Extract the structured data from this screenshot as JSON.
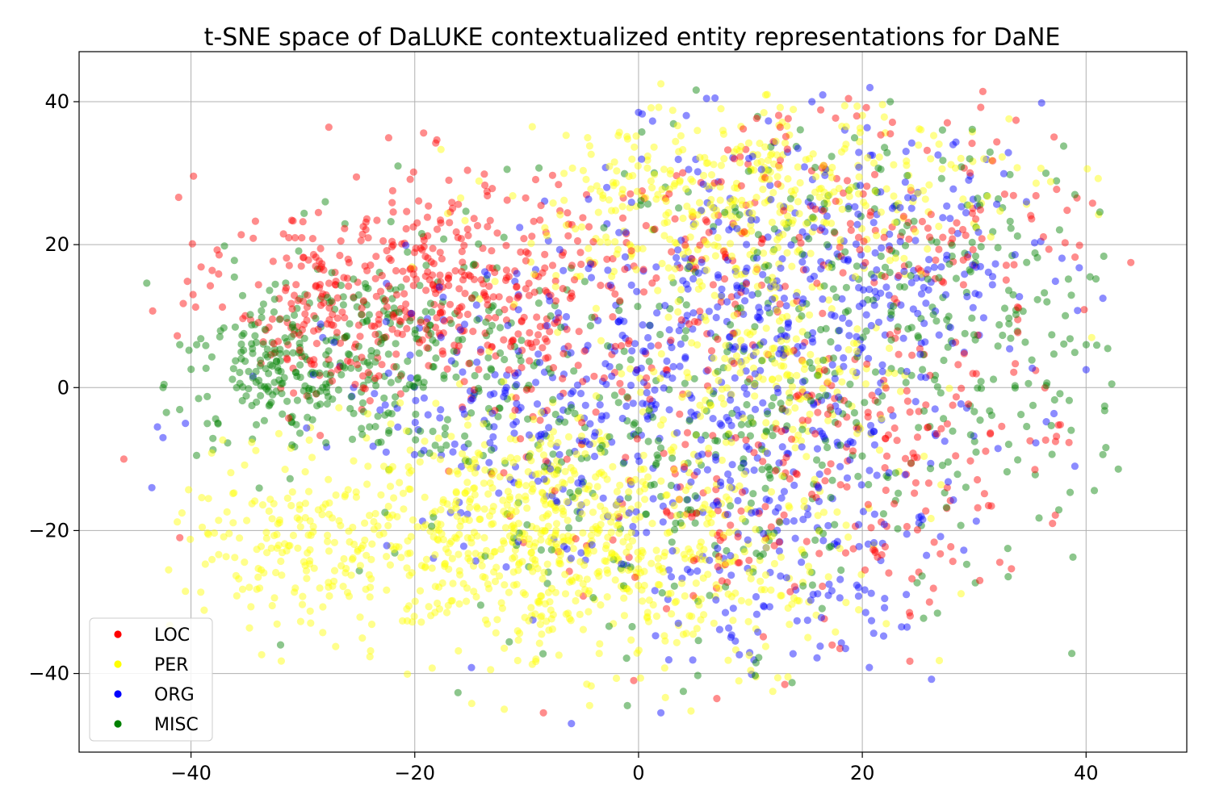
{
  "chart_data": {
    "type": "scatter",
    "title": "t-SNE space of DaLUKE contextualized entity representations for DaNE",
    "xlabel": "",
    "ylabel": "",
    "xlim": [
      -50,
      49
    ],
    "ylim": [
      -51,
      47
    ],
    "xticks": [
      -40,
      -20,
      0,
      20,
      40
    ],
    "yticks": [
      -40,
      -20,
      0,
      20,
      40
    ],
    "xtick_labels": [
      "−40",
      "−20",
      "0",
      "20",
      "40"
    ],
    "ytick_labels": [
      "−40",
      "−20",
      "0",
      "20",
      "40"
    ],
    "grid": true,
    "legend_position": "lower-left",
    "series": [
      {
        "name": "LOC",
        "color": "#ff0000",
        "clusters": [
          {
            "cx": -18,
            "cy": 14,
            "sx": 9,
            "sy": 8,
            "n": 420
          },
          {
            "cx": -30,
            "cy": 10,
            "sx": 3,
            "sy": 6,
            "n": 60
          },
          {
            "cx": 2,
            "cy": 5,
            "sx": 12,
            "sy": 14,
            "n": 180
          },
          {
            "cx": 22,
            "cy": 25,
            "sx": 10,
            "sy": 8,
            "n": 160
          },
          {
            "cx": 25,
            "cy": -8,
            "sx": 8,
            "sy": 10,
            "n": 120
          },
          {
            "cx": 10,
            "cy": -20,
            "sx": 8,
            "sy": 8,
            "n": 80
          }
        ],
        "points": [
          {
            "x": -46,
            "y": -10
          },
          {
            "x": 44,
            "y": 17.5
          },
          {
            "x": 37,
            "y": -19
          },
          {
            "x": 30.5,
            "y": -27
          },
          {
            "x": -8.5,
            "y": -45.5
          },
          {
            "x": 7,
            "y": -43.5
          },
          {
            "x": 19.5,
            "y": 38
          },
          {
            "x": -41,
            "y": -21
          },
          {
            "x": 26,
            "y": -30
          },
          {
            "x": 18,
            "y": -36.5
          }
        ]
      },
      {
        "name": "PER",
        "color": "#ffff00",
        "clusters": [
          {
            "cx": -10,
            "cy": -20,
            "sx": 10,
            "sy": 8,
            "n": 700
          },
          {
            "cx": -32,
            "cy": -22,
            "sx": 5,
            "sy": 7,
            "n": 130
          },
          {
            "cx": 4,
            "cy": 24,
            "sx": 8,
            "sy": 7,
            "n": 280
          },
          {
            "cx": 20,
            "cy": 28,
            "sx": 9,
            "sy": 6,
            "n": 160
          },
          {
            "cx": 12,
            "cy": 2,
            "sx": 5,
            "sy": 5,
            "n": 160
          },
          {
            "cx": 8,
            "cy": -26,
            "sx": 8,
            "sy": 8,
            "n": 160
          }
        ],
        "points": [
          {
            "x": 2,
            "y": 42.5
          },
          {
            "x": 11.5,
            "y": 41
          },
          {
            "x": -9.5,
            "y": 36.5
          },
          {
            "x": 12,
            "y": -42.5
          },
          {
            "x": -12,
            "y": -45
          },
          {
            "x": 40.5,
            "y": 7
          },
          {
            "x": -42,
            "y": -25.5
          },
          {
            "x": -40.5,
            "y": -28.5
          }
        ]
      },
      {
        "name": "ORG",
        "color": "#0000ff",
        "clusters": [
          {
            "cx": 5,
            "cy": 2,
            "sx": 12,
            "sy": 14,
            "n": 430
          },
          {
            "cx": 18,
            "cy": 18,
            "sx": 9,
            "sy": 10,
            "n": 220
          },
          {
            "cx": 14,
            "cy": -25,
            "sx": 8,
            "sy": 8,
            "n": 120
          },
          {
            "cx": -12,
            "cy": -5,
            "sx": 8,
            "sy": 8,
            "n": 100
          }
        ],
        "points": [
          {
            "x": -43.5,
            "y": -14
          },
          {
            "x": -43,
            "y": -5.5
          },
          {
            "x": -42.5,
            "y": -7
          },
          {
            "x": -40.5,
            "y": -5
          },
          {
            "x": 41.5,
            "y": 12.5
          },
          {
            "x": 40,
            "y": 2.5
          },
          {
            "x": 39,
            "y": -11
          },
          {
            "x": 15.5,
            "y": 40
          },
          {
            "x": 0,
            "y": 38.5
          },
          {
            "x": 2,
            "y": -45.5
          },
          {
            "x": -6,
            "y": -47
          },
          {
            "x": 24,
            "y": -33.5
          },
          {
            "x": 22,
            "y": -29.5
          },
          {
            "x": 18.5,
            "y": -36.5
          }
        ]
      },
      {
        "name": "MISC",
        "color": "#008000",
        "clusters": [
          {
            "cx": -24,
            "cy": 5,
            "sx": 8,
            "sy": 7,
            "n": 320
          },
          {
            "cx": -33,
            "cy": 3,
            "sx": 3,
            "sy": 3,
            "n": 80
          },
          {
            "cx": 6,
            "cy": -8,
            "sx": 14,
            "sy": 14,
            "n": 330
          },
          {
            "cx": 30,
            "cy": 5,
            "sx": 7,
            "sy": 12,
            "n": 140
          },
          {
            "cx": 18,
            "cy": 22,
            "sx": 10,
            "sy": 9,
            "n": 120
          }
        ],
        "points": [
          {
            "x": 22.5,
            "y": 40
          },
          {
            "x": 39,
            "y": 27
          },
          {
            "x": 33,
            "y": -22.5
          },
          {
            "x": -39.5,
            "y": -9.5
          },
          {
            "x": -32,
            "y": -36
          },
          {
            "x": 10.5,
            "y": -38.5
          },
          {
            "x": -1,
            "y": -44.5
          },
          {
            "x": 4,
            "y": -42.5
          },
          {
            "x": -21.5,
            "y": 31
          },
          {
            "x": -28,
            "y": 26
          },
          {
            "x": -41,
            "y": 6
          },
          {
            "x": 36.5,
            "y": 12
          }
        ]
      }
    ]
  }
}
